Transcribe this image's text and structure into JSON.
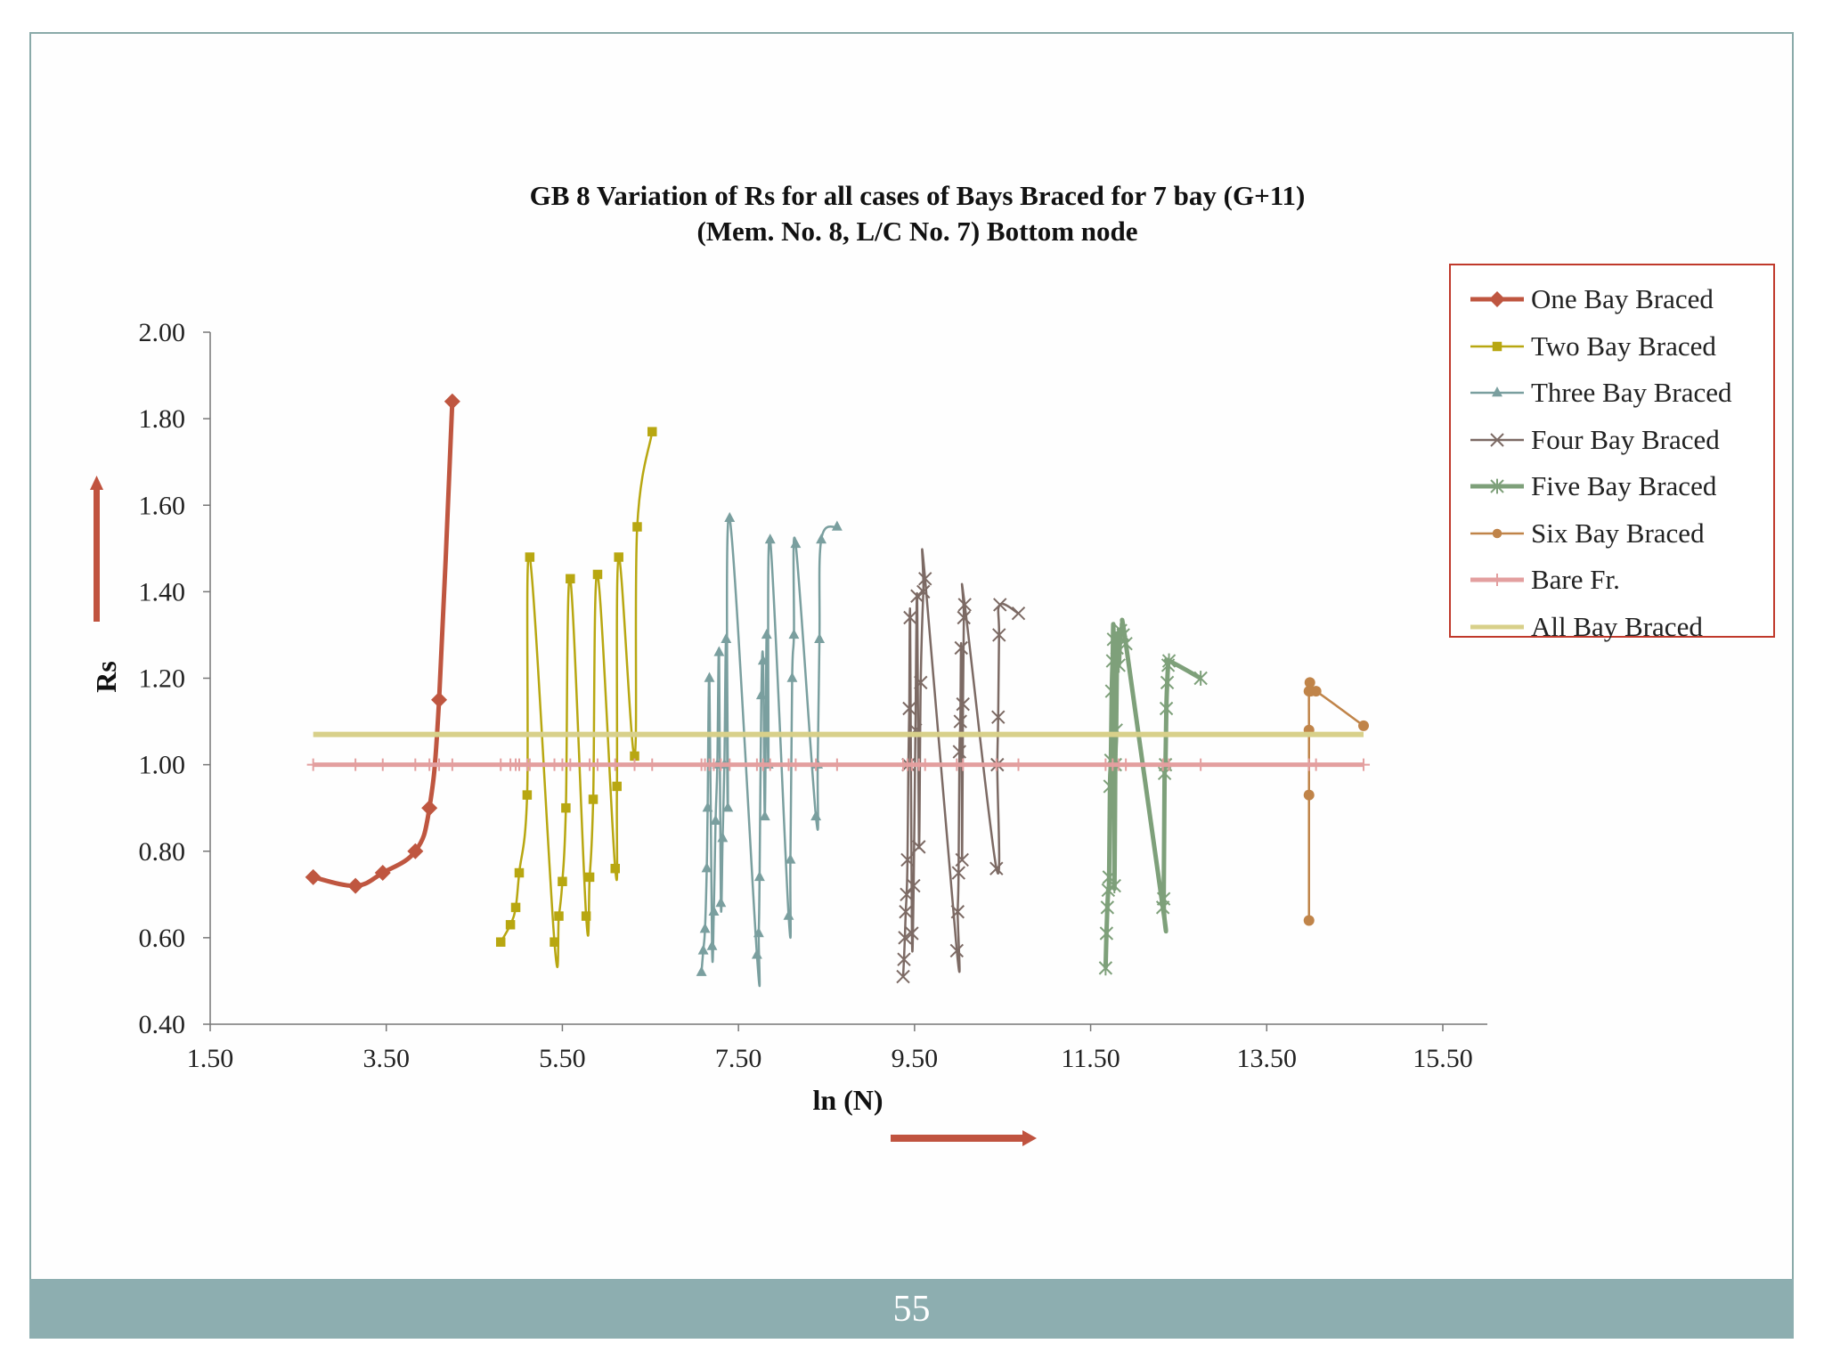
{
  "page": {
    "page_number": "55",
    "background": "#ffffff",
    "frame_color": "#8aaaa9",
    "footer_color": "#8daeb0"
  },
  "chart_data": {
    "type": "line",
    "title_line1": "GB 8 Variation of Rs for all cases of Bays Braced for 7 bay  (G+11)",
    "title_line2": "(Mem. No. 8, L/C No. 7) Bottom node",
    "xlabel": "ln (N)",
    "ylabel": "Rs",
    "xlim": [
      1.5,
      15.5
    ],
    "ylim": [
      0.4,
      2.0
    ],
    "x_ticks": [
      "1.50",
      "3.50",
      "5.50",
      "7.50",
      "9.50",
      "11.50",
      "13.50",
      "15.50"
    ],
    "y_ticks": [
      "0.40",
      "0.60",
      "0.80",
      "1.00",
      "1.20",
      "1.40",
      "1.60",
      "1.80",
      "2.00"
    ],
    "legend_position": "top-right",
    "series": [
      {
        "name": "One Bay Braced",
        "color": "#bf5640",
        "marker": "diamond",
        "width": 5,
        "x": [
          2.67,
          3.15,
          3.46,
          3.83,
          3.99,
          4.1,
          4.25
        ],
        "y": [
          0.74,
          0.72,
          0.75,
          0.8,
          0.9,
          1.15,
          1.84
        ]
      },
      {
        "name": "Two Bay Braced",
        "color": "#b8a711",
        "marker": "square",
        "width": 2.5,
        "x": [
          4.8,
          4.91,
          4.97,
          5.01,
          5.1,
          5.13,
          5.41,
          5.46,
          5.5,
          5.54,
          5.59,
          5.77,
          5.81,
          5.85,
          5.9,
          6.1,
          6.12,
          6.14,
          6.32,
          6.35,
          6.52
        ],
        "y": [
          0.59,
          0.63,
          0.67,
          0.75,
          0.93,
          1.48,
          0.59,
          0.65,
          0.73,
          0.9,
          1.43,
          0.65,
          0.74,
          0.92,
          1.44,
          0.76,
          0.95,
          1.48,
          1.02,
          1.55,
          1.77
        ]
      },
      {
        "name": "Three Bay Braced",
        "color": "#7a9f9f",
        "marker": "triangle",
        "width": 2.5,
        "x": [
          7.08,
          7.1,
          7.12,
          7.14,
          7.15,
          7.17,
          7.2,
          7.22,
          7.24,
          7.26,
          7.28,
          7.3,
          7.32,
          7.34,
          7.36,
          7.38,
          7.4,
          7.71,
          7.73,
          7.74,
          7.76,
          7.78,
          7.8,
          7.82,
          7.84,
          7.86,
          8.07,
          8.09,
          8.11,
          8.13,
          8.15,
          8.38,
          8.4,
          8.42,
          8.44,
          8.62
        ],
        "y": [
          0.52,
          0.57,
          0.62,
          0.76,
          0.9,
          1.2,
          0.58,
          0.66,
          0.87,
          1.0,
          1.26,
          0.68,
          0.83,
          1.0,
          1.29,
          0.9,
          1.57,
          0.56,
          0.61,
          0.74,
          1.16,
          1.24,
          0.88,
          1.3,
          1.0,
          1.52,
          0.65,
          0.78,
          1.2,
          1.3,
          1.51,
          0.88,
          1.0,
          1.29,
          1.52,
          1.55
        ]
      },
      {
        "name": "Four Bay Braced",
        "color": "#7c6a64",
        "marker": "x",
        "width": 2.5,
        "x": [
          9.37,
          9.38,
          9.39,
          9.4,
          9.41,
          9.42,
          9.43,
          9.44,
          9.45,
          9.47,
          9.49,
          9.51,
          9.53,
          9.55,
          9.57,
          9.6,
          9.62,
          9.98,
          9.99,
          10.0,
          10.01,
          10.02,
          10.03,
          10.04,
          10.05,
          10.06,
          10.07,
          10.43,
          10.44,
          10.45,
          10.46,
          10.47,
          10.68
        ],
        "y": [
          0.51,
          0.55,
          0.6,
          0.66,
          0.7,
          0.78,
          1.0,
          1.13,
          1.34,
          0.61,
          0.72,
          1.08,
          1.39,
          0.81,
          1.19,
          1.4,
          1.43,
          0.57,
          0.66,
          0.75,
          1.03,
          1.1,
          1.27,
          0.78,
          1.14,
          1.34,
          1.37,
          0.76,
          1.0,
          1.11,
          1.3,
          1.37,
          1.35
        ]
      },
      {
        "name": "Five Bay Braced",
        "color": "#7ea07a",
        "marker": "asterisk",
        "width": 5,
        "x": [
          11.67,
          11.68,
          11.69,
          11.7,
          11.71,
          11.72,
          11.73,
          11.74,
          11.75,
          11.76,
          11.77,
          11.78,
          11.79,
          11.8,
          11.81,
          11.82,
          11.84,
          11.87,
          11.9,
          12.32,
          12.33,
          12.34,
          12.35,
          12.36,
          12.37,
          12.38,
          12.39,
          12.75
        ],
        "y": [
          0.53,
          0.61,
          0.67,
          0.71,
          0.74,
          0.95,
          1.01,
          1.17,
          1.24,
          1.29,
          0.72,
          1.0,
          1.08,
          1.27,
          1.3,
          1.23,
          1.31,
          1.3,
          1.28,
          0.67,
          0.69,
          0.98,
          1.0,
          1.13,
          1.19,
          1.23,
          1.24,
          1.2
        ]
      },
      {
        "name": "Six Bay Braced",
        "color": "#c08449",
        "marker": "circle",
        "width": 2.5,
        "x": [
          13.98,
          13.98,
          13.98,
          13.98,
          13.99,
          14.0,
          14.06,
          14.6
        ],
        "y": [
          0.64,
          0.93,
          1.08,
          1.17,
          1.19,
          1.17,
          1.17,
          1.09
        ]
      },
      {
        "name": "Bare Fr.",
        "color": "#e39f9f",
        "marker": "plus",
        "width": 5,
        "x": [
          2.67,
          3.15,
          3.46,
          3.83,
          3.99,
          4.1,
          4.25,
          4.8,
          4.91,
          4.97,
          5.01,
          5.1,
          5.13,
          5.41,
          5.5,
          5.59,
          5.81,
          5.9,
          6.1,
          6.32,
          6.52,
          7.08,
          7.12,
          7.17,
          7.22,
          7.3,
          7.4,
          7.71,
          7.78,
          7.86,
          8.07,
          8.15,
          8.38,
          8.62,
          9.37,
          9.42,
          9.47,
          9.55,
          9.62,
          9.98,
          10.05,
          10.43,
          10.68,
          11.67,
          11.75,
          11.82,
          11.9,
          12.32,
          12.39,
          12.75,
          13.98,
          14.06,
          14.6
        ],
        "y": [
          1.0,
          1.0,
          1.0,
          1.0,
          1.0,
          1.0,
          1.0,
          1.0,
          1.0,
          1.0,
          1.0,
          1.0,
          1.0,
          1.0,
          1.0,
          1.0,
          1.0,
          1.0,
          1.0,
          1.0,
          1.0,
          1.0,
          1.0,
          1.0,
          1.0,
          1.0,
          1.0,
          1.0,
          1.0,
          1.0,
          1.0,
          1.0,
          1.0,
          1.0,
          1.0,
          1.0,
          1.0,
          1.0,
          1.0,
          1.0,
          1.0,
          1.0,
          1.0,
          1.0,
          1.0,
          1.0,
          1.0,
          1.0,
          1.0,
          1.0,
          1.0,
          1.0,
          1.0
        ]
      },
      {
        "name": "All Bay Braced",
        "color": "#d8d08a",
        "marker": "none",
        "width": 6,
        "x": [
          2.67,
          14.6
        ],
        "y": [
          1.07,
          1.07
        ]
      }
    ]
  }
}
